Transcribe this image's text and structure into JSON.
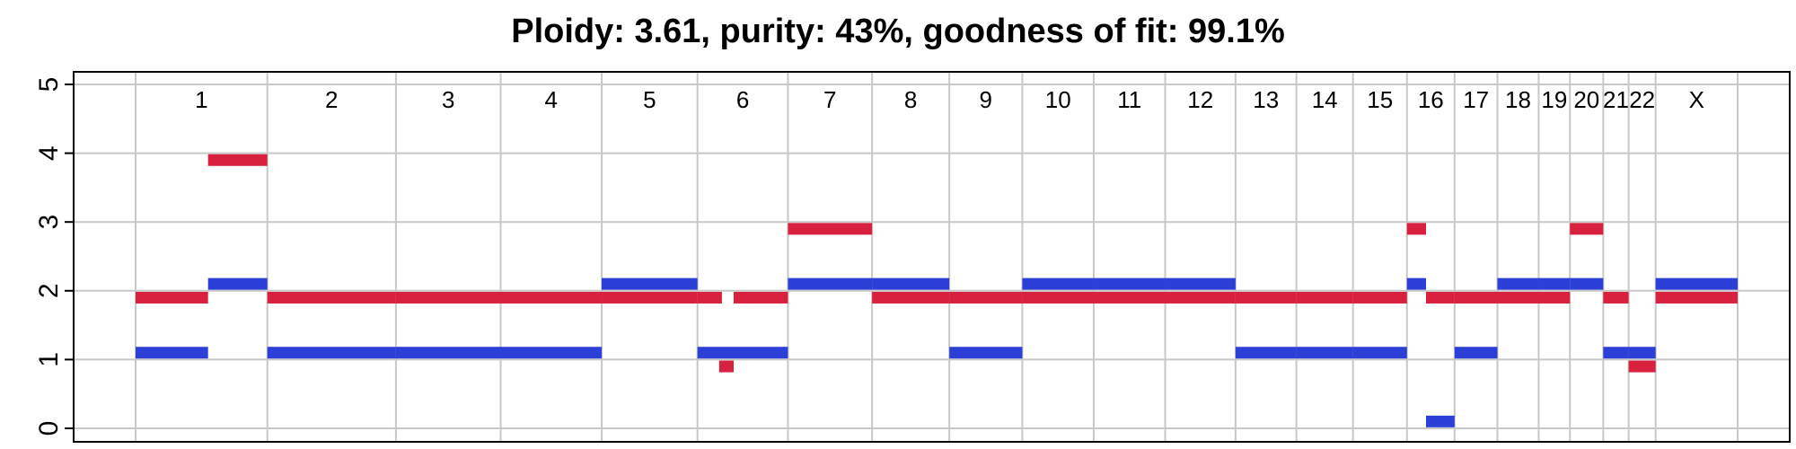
{
  "chart_data": {
    "type": "segment",
    "title": "Ploidy: 3.61, purity: 43%, goodness of fit: 99.1%",
    "xlabel": "",
    "ylabel": "",
    "ylim": [
      0,
      5
    ],
    "yticks": [
      0,
      1,
      2,
      3,
      4,
      5
    ],
    "grid": true,
    "colors": {
      "major": "#d8213f",
      "minor": "#2c3fd6",
      "grid": "#c8c8c8",
      "frame": "#000000"
    },
    "chromosomes": [
      {
        "label": "1",
        "length": 249
      },
      {
        "label": "2",
        "length": 243
      },
      {
        "label": "3",
        "length": 198
      },
      {
        "label": "4",
        "length": 191
      },
      {
        "label": "5",
        "length": 181
      },
      {
        "label": "6",
        "length": 171
      },
      {
        "label": "7",
        "length": 159
      },
      {
        "label": "8",
        "length": 146
      },
      {
        "label": "9",
        "length": 138
      },
      {
        "label": "10",
        "length": 135
      },
      {
        "label": "11",
        "length": 135
      },
      {
        "label": "12",
        "length": 133
      },
      {
        "label": "13",
        "length": 115
      },
      {
        "label": "14",
        "length": 107
      },
      {
        "label": "15",
        "length": 102
      },
      {
        "label": "16",
        "length": 90
      },
      {
        "label": "17",
        "length": 81
      },
      {
        "label": "18",
        "length": 78
      },
      {
        "label": "19",
        "length": 59
      },
      {
        "label": "20",
        "length": 63
      },
      {
        "label": "21",
        "length": 48
      },
      {
        "label": "22",
        "length": 51
      },
      {
        "label": "X",
        "length": 155
      }
    ],
    "series": [
      {
        "key": "major",
        "segments": [
          {
            "chrom": "1",
            "start": 0,
            "end": 0.55,
            "cn": 1.9
          },
          {
            "chrom": "1",
            "start": 0.55,
            "end": 1,
            "cn": 3.9
          },
          {
            "chrom": "2",
            "start": 0,
            "end": 1,
            "cn": 1.9
          },
          {
            "chrom": "3",
            "start": 0,
            "end": 1,
            "cn": 1.9
          },
          {
            "chrom": "4",
            "start": 0,
            "end": 1,
            "cn": 1.9
          },
          {
            "chrom": "5",
            "start": 0,
            "end": 1,
            "cn": 1.9
          },
          {
            "chrom": "6",
            "start": 0,
            "end": 0.27,
            "cn": 1.9
          },
          {
            "chrom": "6",
            "start": 0.24,
            "end": 0.4,
            "cn": 0.9
          },
          {
            "chrom": "6",
            "start": 0.4,
            "end": 1,
            "cn": 1.9
          },
          {
            "chrom": "7",
            "start": 0,
            "end": 1,
            "cn": 2.9
          },
          {
            "chrom": "8",
            "start": 0,
            "end": 1,
            "cn": 1.9
          },
          {
            "chrom": "9",
            "start": 0,
            "end": 1,
            "cn": 1.9
          },
          {
            "chrom": "10",
            "start": 0,
            "end": 1,
            "cn": 1.9
          },
          {
            "chrom": "11",
            "start": 0,
            "end": 1,
            "cn": 1.9
          },
          {
            "chrom": "12",
            "start": 0,
            "end": 1,
            "cn": 1.9
          },
          {
            "chrom": "13",
            "start": 0,
            "end": 1,
            "cn": 1.9
          },
          {
            "chrom": "14",
            "start": 0,
            "end": 1,
            "cn": 1.9
          },
          {
            "chrom": "15",
            "start": 0,
            "end": 1,
            "cn": 1.9
          },
          {
            "chrom": "16",
            "start": 0,
            "end": 0.4,
            "cn": 2.9
          },
          {
            "chrom": "16",
            "start": 0.4,
            "end": 1,
            "cn": 1.9
          },
          {
            "chrom": "17",
            "start": 0,
            "end": 1,
            "cn": 1.9
          },
          {
            "chrom": "18",
            "start": 0,
            "end": 1,
            "cn": 1.9
          },
          {
            "chrom": "19",
            "start": 0,
            "end": 1,
            "cn": 1.9
          },
          {
            "chrom": "20",
            "start": 0,
            "end": 1,
            "cn": 2.9
          },
          {
            "chrom": "21",
            "start": 0,
            "end": 1,
            "cn": 1.9
          },
          {
            "chrom": "22",
            "start": 0,
            "end": 1,
            "cn": 0.9
          },
          {
            "chrom": "X",
            "start": 0,
            "end": 1,
            "cn": 1.9
          }
        ]
      },
      {
        "key": "minor",
        "segments": [
          {
            "chrom": "1",
            "start": 0,
            "end": 0.55,
            "cn": 1.1
          },
          {
            "chrom": "1",
            "start": 0.55,
            "end": 1,
            "cn": 2.1
          },
          {
            "chrom": "2",
            "start": 0,
            "end": 1,
            "cn": 1.1
          },
          {
            "chrom": "3",
            "start": 0,
            "end": 1,
            "cn": 1.1
          },
          {
            "chrom": "4",
            "start": 0,
            "end": 1,
            "cn": 1.1
          },
          {
            "chrom": "5",
            "start": 0,
            "end": 1,
            "cn": 2.1
          },
          {
            "chrom": "6",
            "start": 0,
            "end": 1,
            "cn": 1.1
          },
          {
            "chrom": "7",
            "start": 0,
            "end": 1,
            "cn": 2.1
          },
          {
            "chrom": "8",
            "start": 0,
            "end": 1,
            "cn": 2.1
          },
          {
            "chrom": "9",
            "start": 0,
            "end": 1,
            "cn": 1.1
          },
          {
            "chrom": "10",
            "start": 0,
            "end": 1,
            "cn": 2.1
          },
          {
            "chrom": "11",
            "start": 0,
            "end": 1,
            "cn": 2.1
          },
          {
            "chrom": "12",
            "start": 0,
            "end": 1,
            "cn": 2.1
          },
          {
            "chrom": "13",
            "start": 0,
            "end": 1,
            "cn": 1.1
          },
          {
            "chrom": "14",
            "start": 0,
            "end": 1,
            "cn": 1.1
          },
          {
            "chrom": "15",
            "start": 0,
            "end": 1,
            "cn": 1.1
          },
          {
            "chrom": "16",
            "start": 0,
            "end": 0.4,
            "cn": 2.1
          },
          {
            "chrom": "16",
            "start": 0.4,
            "end": 1,
            "cn": 0.1
          },
          {
            "chrom": "17",
            "start": 0,
            "end": 1,
            "cn": 1.1
          },
          {
            "chrom": "18",
            "start": 0,
            "end": 1,
            "cn": 2.1
          },
          {
            "chrom": "19",
            "start": 0,
            "end": 1,
            "cn": 2.1
          },
          {
            "chrom": "20",
            "start": 0,
            "end": 1,
            "cn": 2.1
          },
          {
            "chrom": "21",
            "start": 0,
            "end": 1,
            "cn": 1.1
          },
          {
            "chrom": "22",
            "start": 0,
            "end": 1,
            "cn": 1.1
          },
          {
            "chrom": "X",
            "start": 0,
            "end": 1,
            "cn": 2.1
          }
        ]
      }
    ]
  }
}
